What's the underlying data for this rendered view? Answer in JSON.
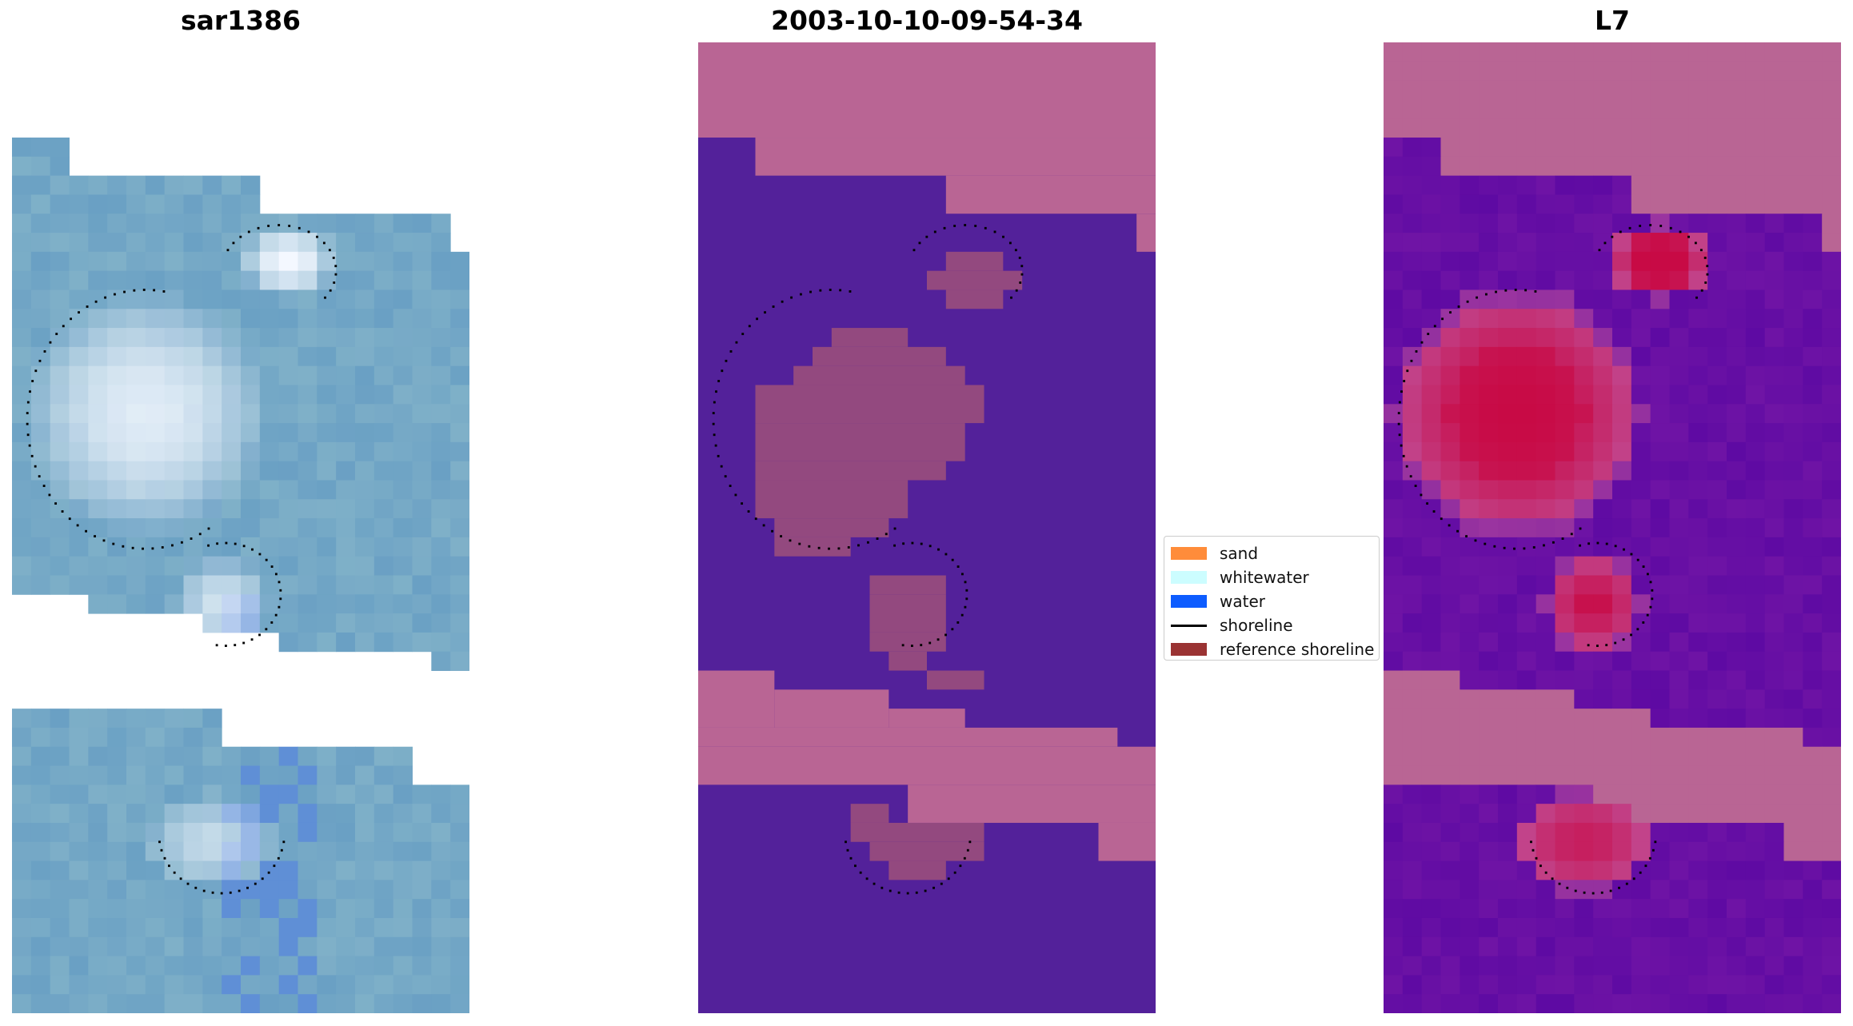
{
  "panels": [
    {
      "title": "sar1386"
    },
    {
      "title": "2003-10-10-09-54-34"
    },
    {
      "title": "L7"
    }
  ],
  "legend": {
    "items": [
      {
        "label": "sand",
        "color": "#ff8c3a"
      },
      {
        "label": "whitewater",
        "color": "#ccfdff"
      },
      {
        "label": "water",
        "color": "#0d5cff"
      },
      {
        "label": "shoreline",
        "color": "#000000"
      },
      {
        "label": "reference shoreline",
        "color": "#9a3333"
      }
    ]
  },
  "colors": {
    "rgb_base": "#6fa3c7",
    "class_land": "#b96594",
    "class_water": "#53219a",
    "mndwi_high": "#c80a45",
    "mndwi_low": "#5e0aa3"
  }
}
